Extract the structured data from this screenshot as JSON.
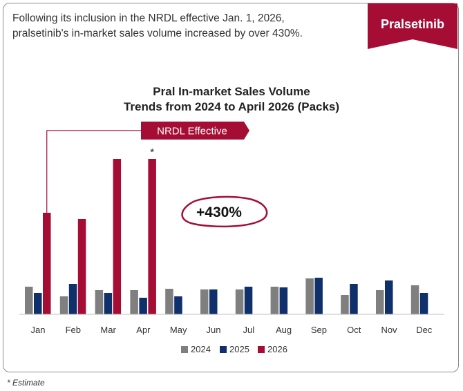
{
  "header": {
    "line1": "Following its inclusion in the NRDL effective Jan. 1, 2026,",
    "line2": "pralsetinib's in-market sales volume increased by over 430%."
  },
  "brand_tag": {
    "label": "Pralsetinib",
    "color": "#a50d34"
  },
  "footnote": "* Estimate",
  "annotations": {
    "nrdl_label": "NRDL Effective",
    "growth_label": "+430%",
    "estimate_marker": "*"
  },
  "colors": {
    "2024": "#7f7f7f",
    "2025": "#10306b",
    "2026": "#a50d34"
  },
  "chart_data": {
    "type": "bar",
    "title": "Pral In-market Sales Volume",
    "subtitle": "Trends from 2024 to April 2026 (Packs)",
    "categories": [
      "Jan",
      "Feb",
      "Mar",
      "Apr",
      "May",
      "Jun",
      "Jul",
      "Aug",
      "Sep",
      "Oct",
      "Nov",
      "Dec"
    ],
    "series": [
      {
        "name": "2024",
        "values": [
          40,
          26,
          35,
          35,
          37,
          36,
          36,
          40,
          52,
          28,
          35,
          42
        ]
      },
      {
        "name": "2025",
        "values": [
          31,
          44,
          31,
          24,
          26,
          36,
          40,
          39,
          53,
          44,
          49,
          31
        ]
      },
      {
        "name": "2026",
        "values": [
          147,
          138,
          225,
          225,
          null,
          null,
          null,
          null,
          null,
          null,
          null,
          null
        ]
      }
    ],
    "ylim": [
      0,
      250
    ],
    "legend_position": "bottom",
    "grid": false,
    "estimated": {
      "series": "2026",
      "category": "Apr"
    }
  }
}
